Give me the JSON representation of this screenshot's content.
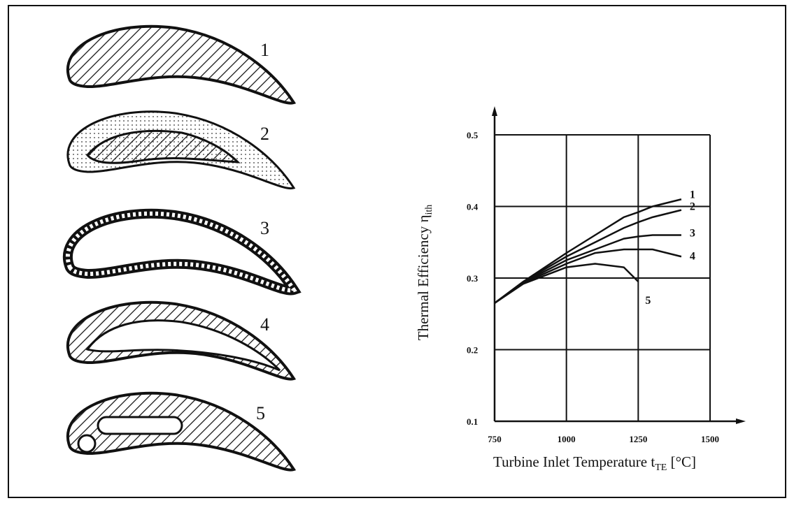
{
  "blades": {
    "labels": [
      "1",
      "2",
      "3",
      "4",
      "5"
    ]
  },
  "chart_data": {
    "type": "line",
    "xlabel": "Turbine Inlet Temperature",
    "xlabel_symbol": "t",
    "xlabel_subscript": "TE",
    "xlabel_unit": "[°C]",
    "ylabel": "Thermal Efficiency",
    "ylabel_symbol": "η",
    "ylabel_subscript": "ith",
    "x": [
      750,
      850,
      1000,
      1100,
      1200,
      1250,
      1300,
      1400
    ],
    "series": [
      {
        "name": "1",
        "color": "#111111",
        "values": [
          0.265,
          0.295,
          0.335,
          0.36,
          0.385,
          0.392,
          0.4,
          0.41
        ]
      },
      {
        "name": "2",
        "color": "#111111",
        "values": [
          0.265,
          0.295,
          0.33,
          0.35,
          0.37,
          0.378,
          0.385,
          0.395
        ]
      },
      {
        "name": "3",
        "color": "#111111",
        "values": [
          0.265,
          0.294,
          0.325,
          0.34,
          0.355,
          0.358,
          0.36,
          0.36
        ]
      },
      {
        "name": "4",
        "color": "#111111",
        "values": [
          0.265,
          0.293,
          0.32,
          0.335,
          0.34,
          0.34,
          0.34,
          0.33
        ]
      },
      {
        "name": "5",
        "color": "#111111",
        "values": [
          0.265,
          0.292,
          0.315,
          0.32,
          0.315,
          0.295,
          null,
          null
        ]
      }
    ],
    "xlim": [
      750,
      1500
    ],
    "ylim": [
      0.1,
      0.5
    ],
    "xticks": [
      750,
      1000,
      1250,
      1500
    ],
    "yticks": [
      0.1,
      0.2,
      0.3,
      0.4,
      0.5
    ],
    "grid": true
  }
}
